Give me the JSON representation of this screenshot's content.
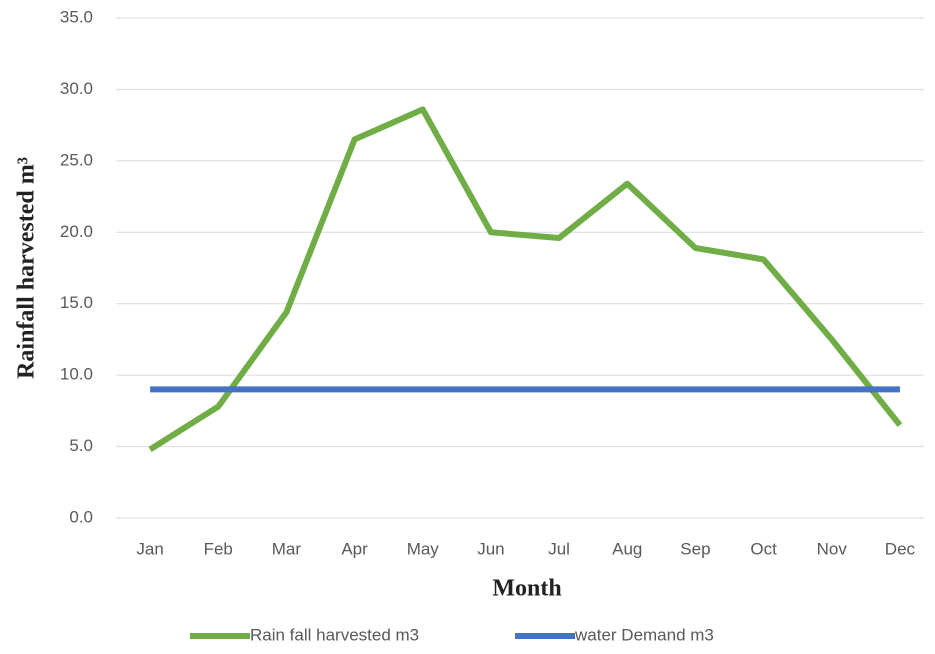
{
  "chart_data": {
    "type": "line",
    "x_label": "Month",
    "y_label": "Rainfall harvested m³",
    "categories": [
      "Jan",
      "Feb",
      "Mar",
      "Apr",
      "May",
      "Jun",
      "Jul",
      "Aug",
      "Sep",
      "Oct",
      "Nov",
      "Dec"
    ],
    "series": [
      {
        "name": "Rain fall harvested m3",
        "color": "#70ad47",
        "values": [
          4.8,
          7.8,
          14.4,
          26.5,
          28.6,
          20.0,
          19.6,
          23.4,
          18.9,
          18.1,
          12.5,
          6.5
        ]
      },
      {
        "name": "water Demand m3",
        "color": "#4472c4",
        "values": [
          9.0,
          9.0,
          9.0,
          9.0,
          9.0,
          9.0,
          9.0,
          9.0,
          9.0,
          9.0,
          9.0,
          9.0
        ]
      }
    ],
    "ylim": [
      0,
      35
    ],
    "yticks": [
      {
        "value": 0,
        "label": "0.0"
      },
      {
        "value": 5,
        "label": "5.0"
      },
      {
        "value": 10,
        "label": "10.0"
      },
      {
        "value": 15,
        "label": "15.0"
      },
      {
        "value": 20,
        "label": "20.0"
      },
      {
        "value": 25,
        "label": "25.0"
      },
      {
        "value": 30,
        "label": "30.0"
      },
      {
        "value": 35,
        "label": "35.0"
      }
    ],
    "grid": true,
    "legend": "bottom"
  }
}
